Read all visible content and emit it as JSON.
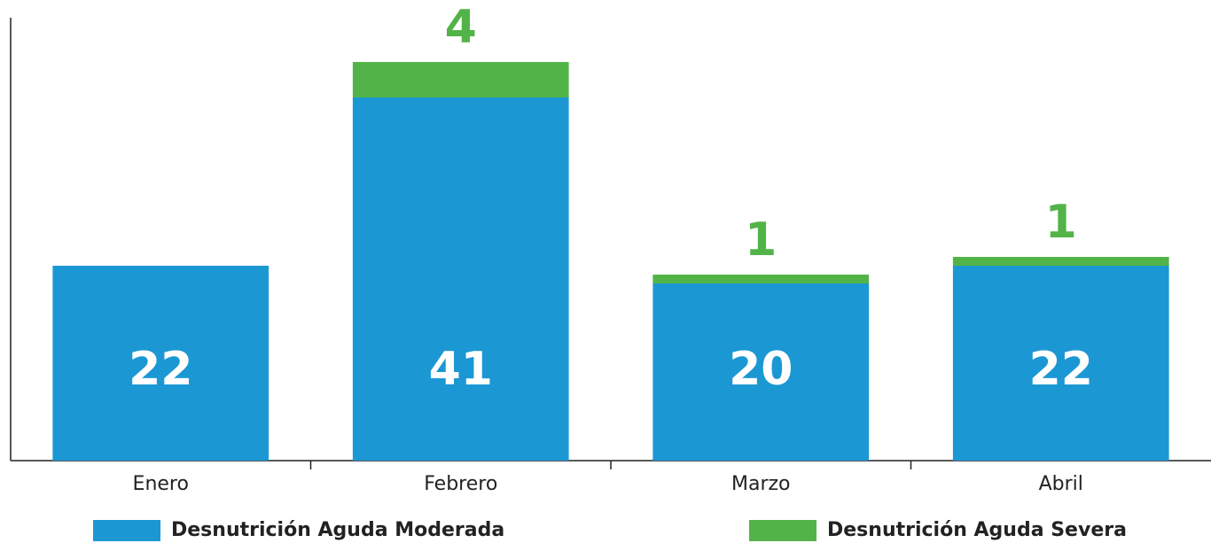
{
  "chart_data": {
    "type": "stacked-bar",
    "categories": [
      "Enero",
      "Febrero",
      "Marzo",
      "Abril"
    ],
    "series": [
      {
        "name": "Desnutrición Aguda Moderada",
        "color": "#1b98d3",
        "values": [
          22,
          41,
          20,
          22
        ]
      },
      {
        "name": "Desnutrición Aguda Severa",
        "color": "#52b448",
        "values": [
          null,
          4,
          1,
          1
        ]
      }
    ],
    "ylim": [
      0,
      50
    ]
  }
}
